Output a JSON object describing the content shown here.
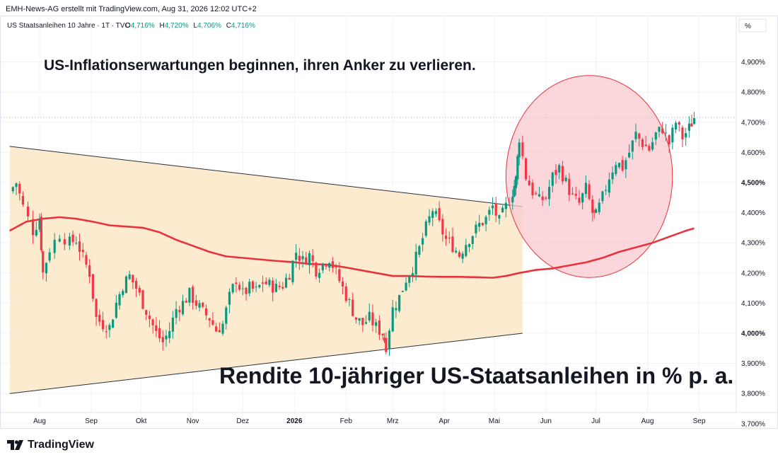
{
  "header": {
    "caption": "EMH-News-AG erstellt mit TradingView.com, Aug 31, 2026 12:02 UTC+2"
  },
  "legend": {
    "symbol": "US Staatsanleihen 10 Jahre · 1T · TVC",
    "o_label": "O",
    "o_value": "4,716%",
    "h_label": "H",
    "h_value": "4,720%",
    "l_label": "L",
    "l_value": "4,706%",
    "c_label": "C",
    "c_value": "4,716%",
    "value_color": "#089981"
  },
  "scale_button": "%",
  "annotations": {
    "headline": "US-Inflationserwartungen beginnen, ihren Anker zu verlieren.",
    "subtitle": "Rendite 10-jähriger US-Staatsanleihen in % p. a."
  },
  "branding": {
    "name": "TradingView"
  },
  "colors": {
    "up": "#089981",
    "down": "#f23645",
    "moving_average": "#e8323c",
    "triangle_fill": "#fde7c8",
    "circle_fill": "#f9c9d0",
    "circle_stroke": "#e8323c",
    "trendline": "#2a2e39"
  },
  "chart_data": {
    "type": "candlestick",
    "y_axis": {
      "unit": "%",
      "range": [
        3.65,
        4.95
      ],
      "ticks": [
        "4,900%",
        "4,800%",
        "4,700%",
        "4,600%",
        "4,500%",
        "4,400%",
        "4,300%",
        "4,200%",
        "4,100%",
        "4,000%",
        "3,900%",
        "3,800%",
        "3,700%"
      ],
      "tick_values": [
        4.9,
        4.8,
        4.7,
        4.6,
        4.5,
        4.4,
        4.3,
        4.2,
        4.1,
        4.0,
        3.9,
        3.8,
        3.7
      ],
      "bold_ticks": [
        "4,500%",
        "4,000%"
      ]
    },
    "x_axis": {
      "labels": [
        "Aug",
        "Sep",
        "Okt",
        "Nov",
        "Dez",
        "2026",
        "Feb",
        "Mrz",
        "Apr",
        "Mai",
        "Jun",
        "Jul",
        "Aug",
        "Sep"
      ],
      "label_days": [
        0,
        31,
        61,
        92,
        122,
        153,
        184,
        212,
        243,
        273,
        304,
        334,
        365,
        396
      ],
      "bold_labels": [
        "2026"
      ]
    },
    "last_value": 4.716,
    "price_path": [
      [
        -18,
        4.47
      ],
      [
        -14,
        4.5
      ],
      [
        -10,
        4.42
      ],
      [
        -4,
        4.34
      ],
      [
        0,
        4.38
      ],
      [
        2,
        4.2
      ],
      [
        6,
        4.28
      ],
      [
        12,
        4.33
      ],
      [
        18,
        4.3
      ],
      [
        22,
        4.31
      ],
      [
        26,
        4.25
      ],
      [
        30,
        4.2
      ],
      [
        34,
        4.05
      ],
      [
        38,
        4.03
      ],
      [
        42,
        4.02
      ],
      [
        46,
        4.1
      ],
      [
        50,
        4.16
      ],
      [
        54,
        4.19
      ],
      [
        58,
        4.15
      ],
      [
        62,
        4.1
      ],
      [
        66,
        4.05
      ],
      [
        70,
        4.0
      ],
      [
        74,
        3.97
      ],
      [
        78,
        4.01
      ],
      [
        82,
        4.08
      ],
      [
        86,
        4.1
      ],
      [
        90,
        4.13
      ],
      [
        94,
        4.1
      ],
      [
        98,
        4.07
      ],
      [
        102,
        4.05
      ],
      [
        106,
        4.01
      ],
      [
        110,
        4.03
      ],
      [
        114,
        4.12
      ],
      [
        118,
        4.18
      ],
      [
        122,
        4.13
      ],
      [
        126,
        4.15
      ],
      [
        130,
        4.14
      ],
      [
        134,
        4.17
      ],
      [
        138,
        4.16
      ],
      [
        142,
        4.15
      ],
      [
        146,
        4.16
      ],
      [
        150,
        4.2
      ],
      [
        154,
        4.27
      ],
      [
        158,
        4.24
      ],
      [
        162,
        4.26
      ],
      [
        166,
        4.21
      ],
      [
        170,
        4.23
      ],
      [
        174,
        4.25
      ],
      [
        178,
        4.2
      ],
      [
        182,
        4.15
      ],
      [
        186,
        4.1
      ],
      [
        190,
        4.05
      ],
      [
        194,
        4.03
      ],
      [
        198,
        4.05
      ],
      [
        202,
        4.02
      ],
      [
        206,
        4.0
      ],
      [
        208,
        3.96
      ],
      [
        212,
        4.08
      ],
      [
        216,
        4.12
      ],
      [
        220,
        4.18
      ],
      [
        224,
        4.22
      ],
      [
        228,
        4.28
      ],
      [
        232,
        4.35
      ],
      [
        236,
        4.41
      ],
      [
        240,
        4.36
      ],
      [
        244,
        4.31
      ],
      [
        248,
        4.29
      ],
      [
        252,
        4.26
      ],
      [
        256,
        4.3
      ],
      [
        260,
        4.33
      ],
      [
        264,
        4.36
      ],
      [
        268,
        4.38
      ],
      [
        272,
        4.42
      ],
      [
        276,
        4.37
      ],
      [
        280,
        4.42
      ],
      [
        284,
        4.47
      ],
      [
        286,
        4.51
      ],
      [
        288,
        4.65
      ],
      [
        292,
        4.52
      ],
      [
        296,
        4.47
      ],
      [
        300,
        4.44
      ],
      [
        304,
        4.45
      ],
      [
        308,
        4.52
      ],
      [
        312,
        4.55
      ],
      [
        316,
        4.5
      ],
      [
        320,
        4.45
      ],
      [
        324,
        4.43
      ],
      [
        328,
        4.48
      ],
      [
        332,
        4.4
      ],
      [
        334,
        4.39
      ],
      [
        338,
        4.45
      ],
      [
        342,
        4.52
      ],
      [
        346,
        4.57
      ],
      [
        350,
        4.55
      ],
      [
        354,
        4.6
      ],
      [
        358,
        4.66
      ],
      [
        362,
        4.63
      ],
      [
        366,
        4.61
      ],
      [
        370,
        4.66
      ],
      [
        374,
        4.68
      ],
      [
        378,
        4.63
      ],
      [
        382,
        4.7
      ],
      [
        386,
        4.65
      ],
      [
        390,
        4.68
      ],
      [
        393,
        4.716
      ]
    ],
    "moving_average": [
      [
        -18,
        4.34
      ],
      [
        -8,
        4.37
      ],
      [
        2,
        4.38
      ],
      [
        12,
        4.385
      ],
      [
        22,
        4.38
      ],
      [
        32,
        4.37
      ],
      [
        42,
        4.358
      ],
      [
        52,
        4.354
      ],
      [
        62,
        4.35
      ],
      [
        72,
        4.335
      ],
      [
        82,
        4.31
      ],
      [
        92,
        4.29
      ],
      [
        102,
        4.27
      ],
      [
        112,
        4.255
      ],
      [
        122,
        4.25
      ],
      [
        132,
        4.245
      ],
      [
        142,
        4.24
      ],
      [
        152,
        4.236
      ],
      [
        162,
        4.23
      ],
      [
        172,
        4.228
      ],
      [
        182,
        4.22
      ],
      [
        192,
        4.21
      ],
      [
        202,
        4.2
      ],
      [
        212,
        4.19
      ],
      [
        222,
        4.19
      ],
      [
        232,
        4.188
      ],
      [
        242,
        4.187
      ],
      [
        252,
        4.187
      ],
      [
        262,
        4.186
      ],
      [
        272,
        4.184
      ],
      [
        280,
        4.19
      ],
      [
        288,
        4.2
      ],
      [
        298,
        4.21
      ],
      [
        308,
        4.215
      ],
      [
        318,
        4.225
      ],
      [
        328,
        4.235
      ],
      [
        338,
        4.25
      ],
      [
        348,
        4.27
      ],
      [
        358,
        4.285
      ],
      [
        368,
        4.3
      ],
      [
        378,
        4.32
      ],
      [
        388,
        4.34
      ],
      [
        393,
        4.348
      ]
    ],
    "triangle": {
      "upper_line": [
        [
          -18,
          4.62
        ],
        [
          290,
          4.42
        ]
      ],
      "lower_line": [
        [
          -18,
          3.8
        ],
        [
          290,
          4.0
        ]
      ],
      "right_edge_day": 290
    },
    "highlight_circle": {
      "center": [
        330,
        4.52
      ],
      "radius_days": 50,
      "radius_pct": 0.335
    }
  }
}
